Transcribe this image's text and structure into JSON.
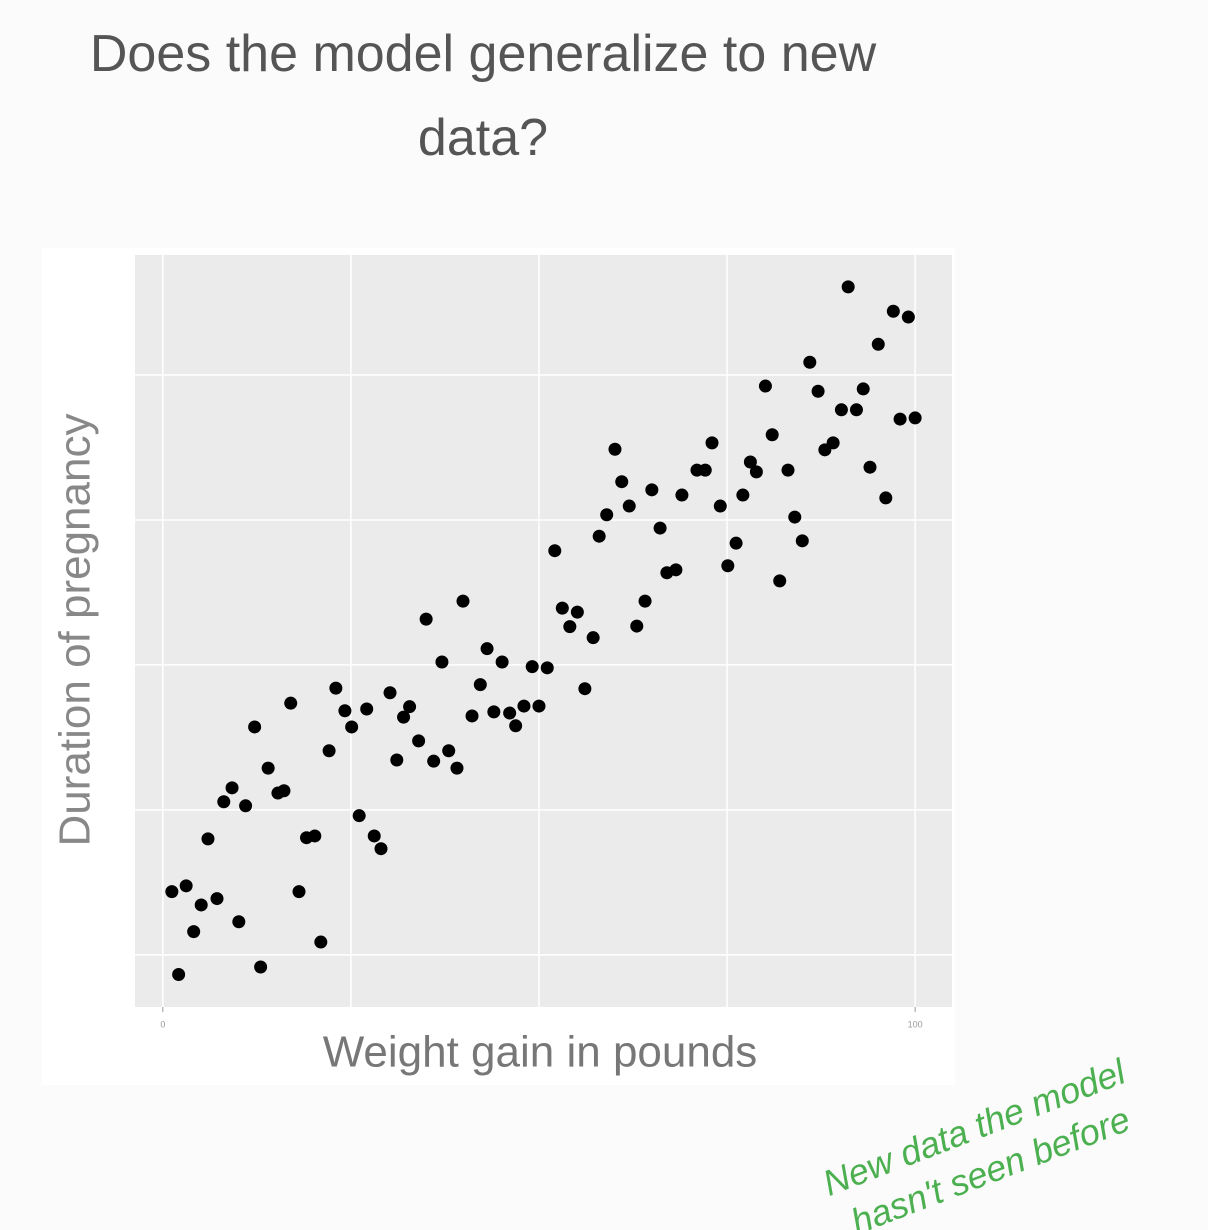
{
  "chart_data": {
    "type": "scatter",
    "title": "Does the model generalize to new data?",
    "xlabel": "Weight gain in pounds",
    "ylabel": "Duration of pregnancy",
    "annotation": [
      "New data the model",
      "hasn't seen before"
    ],
    "annotation_color": "#4cb050",
    "color": "#000000",
    "grid": true,
    "xlim": [
      -3.7,
      104.9
    ],
    "ylim": [
      -9,
      120.7
    ],
    "xticks": [
      0,
      100
    ],
    "xgrid": [
      0,
      25,
      50,
      75,
      100
    ],
    "ygrid": [
      0,
      25,
      50,
      75,
      100
    ],
    "x": [
      1.2,
      3.1,
      5.1,
      7.2,
      4.1,
      2.1,
      10.1,
      13.0,
      6.0,
      8.1,
      9.2,
      11.0,
      12.2,
      14.0,
      15.3,
      16.1,
      17.0,
      18.1,
      19.1,
      20.2,
      21.0,
      22.1,
      23.0,
      24.2,
      25.1,
      26.1,
      27.1,
      28.1,
      29.0,
      30.2,
      31.1,
      32.0,
      32.8,
      34.0,
      35.0,
      36.0,
      37.1,
      38.0,
      39.1,
      39.9,
      41.1,
      42.2,
      43.1,
      44.0,
      45.1,
      46.1,
      46.9,
      48.0,
      49.1,
      50.0,
      51.1,
      52.1,
      53.1,
      54.1,
      55.1,
      56.1,
      57.2,
      58.0,
      59.0,
      60.1,
      61.0,
      62.0,
      63.0,
      64.1,
      65.0,
      66.1,
      67.0,
      68.2,
      69.0,
      71.0,
      72.1,
      73.0,
      74.1,
      75.1,
      76.2,
      77.1,
      78.1,
      78.9,
      80.1,
      81.0,
      82.0,
      83.1,
      84.0,
      85.0,
      86.0,
      87.1,
      88.0,
      89.1,
      90.2,
      91.1,
      92.2,
      93.1,
      94.0,
      95.1,
      96.1,
      97.1,
      98.0,
      99.1,
      100.0
    ],
    "values": [
      10.9,
      11.9,
      8.6,
      9.7,
      4.0,
      -3.4,
      5.7,
      -2.1,
      20.0,
      26.4,
      28.8,
      25.7,
      39.3,
      32.2,
      27.9,
      28.3,
      43.4,
      10.9,
      20.2,
      20.5,
      2.2,
      35.2,
      46.0,
      42.1,
      39.3,
      24.0,
      42.4,
      20.5,
      18.3,
      45.2,
      33.6,
      41.0,
      42.8,
      36.9,
      57.9,
      33.4,
      50.5,
      35.2,
      32.2,
      61.0,
      41.2,
      46.6,
      52.8,
      41.9,
      50.5,
      41.7,
      39.5,
      42.9,
      49.7,
      42.9,
      49.5,
      69.7,
      59.8,
      56.6,
      59.1,
      45.9,
      54.7,
      72.2,
      75.9,
      87.2,
      81.6,
      77.4,
      56.7,
      61.0,
      80.2,
      73.6,
      65.9,
      66.4,
      79.3,
      83.6,
      83.6,
      88.3,
      77.4,
      67.1,
      71.0,
      79.3,
      85.0,
      83.3,
      98.1,
      89.7,
      64.5,
      83.6,
      75.5,
      71.4,
      102.2,
      97.2,
      87.1,
      88.3,
      94.0,
      115.2,
      94.0,
      97.6,
      84.1,
      105.3,
      78.8,
      111.0,
      92.4,
      110.0,
      92.6
    ]
  }
}
